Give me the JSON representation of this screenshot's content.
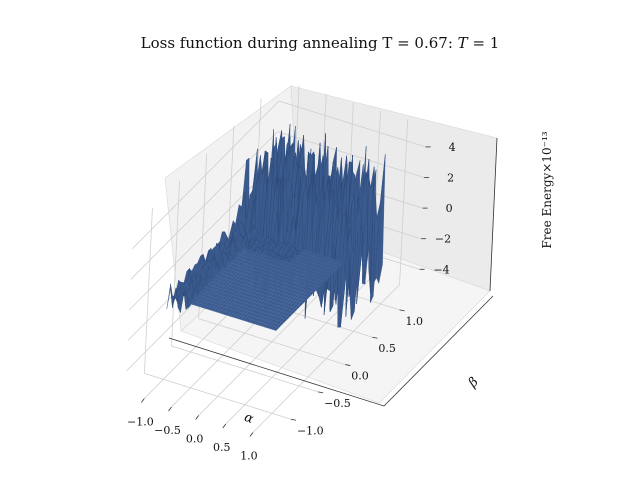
{
  "chart_data": {
    "type": "surface3d",
    "title": "Loss function during annealing T = 0.67: T = 1",
    "title_main": "Loss function during annealing T = 0.67:",
    "title_var": "T",
    "title_eq": "= 1",
    "xlabel": "α",
    "ylabel": "β",
    "zlabel": "Free Energy",
    "z_scale_label": "×10⁻¹³",
    "xlim": [
      -1.0,
      1.0
    ],
    "ylim": [
      -1.0,
      1.0
    ],
    "zlim": [
      -5,
      5
    ],
    "x_ticks": [
      "−1.0",
      "−0.5",
      "0.0",
      "0.5",
      "1.0"
    ],
    "y_ticks": [
      "−1.0",
      "−0.5",
      "0.0",
      "0.5",
      "1.0"
    ],
    "z_ticks": [
      "−4",
      "−2",
      "0",
      "2",
      "4"
    ],
    "surface_color": "#3b5a8e",
    "grid": true,
    "series": [
      {
        "values": {
          "flat_region": {
            "alpha": [
              -1.0,
              1.0
            ],
            "beta": [
              -1.0,
              0.3
            ],
            "free_energy": 0
          },
          "noisy_region": {
            "alpha": [
              -1.0,
              1.0
            ],
            "beta": [
              0.3,
              1.0
            ],
            "free_energy_range": [
              -5,
              5
            ]
          },
          "edge_noise": {
            "alpha": [
              -1.0,
              -0.6
            ],
            "beta": [
              -1.0,
              0.3
            ],
            "free_energy_range": [
              -1,
              1
            ]
          }
        }
      }
    ]
  }
}
